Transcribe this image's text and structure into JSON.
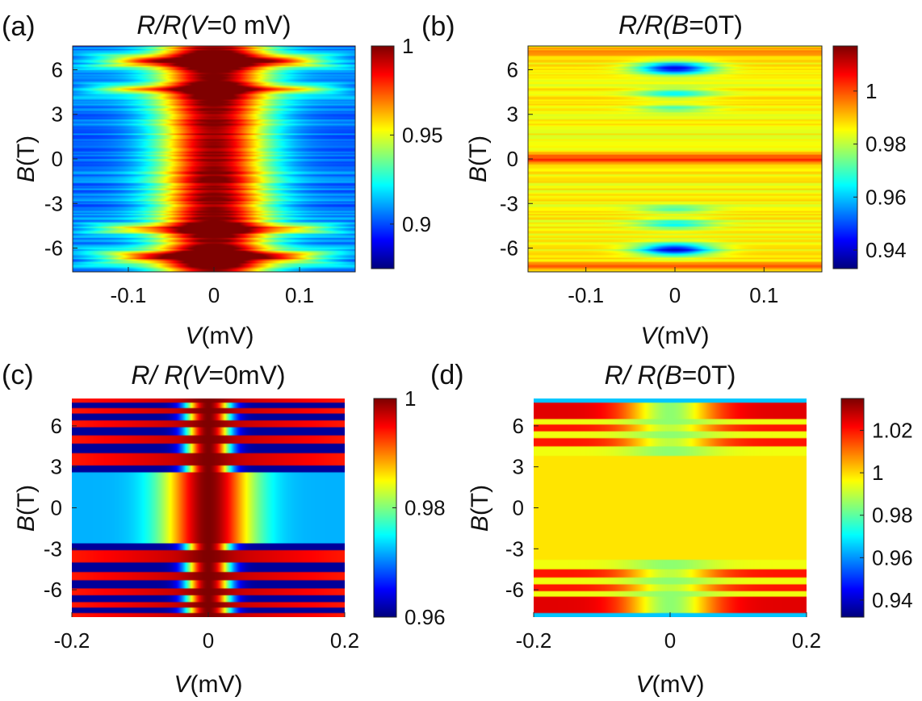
{
  "figure": {
    "panels": [
      {
        "label": "(a)",
        "title": {
          "a": "R/R(",
          "b": "V",
          "c": "=0 mV)"
        },
        "ylabel": {
          "b": "B",
          "r": "(T)"
        },
        "xlabel": {
          "b": "V",
          "r": "(mV)"
        }
      },
      {
        "label": "(b)",
        "title": {
          "a": "R/R(",
          "b": "B",
          "c": "=0T)"
        },
        "ylabel": {
          "b": "B",
          "r": "(T)"
        },
        "xlabel": {
          "b": "V",
          "r": "(mV)"
        }
      },
      {
        "label": "(c)",
        "title": {
          "a": "R/ R(",
          "b": "V",
          "c": "=0mV)"
        },
        "ylabel": {
          "b": "B",
          "r": "(T)"
        },
        "xlabel": {
          "b": "V",
          "r": "(mV)"
        }
      },
      {
        "label": "(d)",
        "title": {
          "a": "R/ R(",
          "b": "B",
          "c": "=0T)"
        },
        "ylabel": {
          "b": "B",
          "r": "(T)"
        },
        "xlabel": {
          "b": "V",
          "r": "(mV)"
        }
      }
    ]
  },
  "chart_data": [
    {
      "type": "heatmap",
      "id": "a",
      "panel_label": "(a)",
      "title": "R/R(V=0 mV)",
      "xlabel": "V(mV)",
      "ylabel": "B(T)",
      "xlim": [
        -0.165,
        0.165
      ],
      "ylim": [
        -7.6,
        7.6
      ],
      "xticks": [
        -0.1,
        0,
        0.1
      ],
      "xticklabels": [
        "-0.1",
        "0",
        "0.1"
      ],
      "yticks": [
        6,
        3,
        0,
        -3,
        -6
      ],
      "yticklabels": [
        "6",
        "3",
        "0",
        "-3",
        "-6"
      ],
      "colorbar": {
        "range": [
          0.875,
          1.0
        ],
        "ticks": [
          1,
          0.95,
          0.9
        ],
        "ticklabels": [
          "1",
          "0.95",
          "0.9"
        ]
      },
      "colormap": "jet",
      "description_of_data": "Zero-bias peak (~1) along V=0, decreasing to ~0.9 at larger |V|; high-field horizontal bands near B=±4.8, ±6.5 T."
    },
    {
      "type": "heatmap",
      "id": "b",
      "panel_label": "(b)",
      "title": "R/R(B=0T)",
      "xlabel": "V(mV)",
      "ylabel": "B(T)",
      "xlim": [
        -0.165,
        0.165
      ],
      "ylim": [
        -7.6,
        7.6
      ],
      "xticks": [
        -0.1,
        0,
        0.1
      ],
      "xticklabels": [
        "-0.1",
        "0",
        "0.1"
      ],
      "yticks": [
        6,
        3,
        0,
        -3,
        -6
      ],
      "yticklabels": [
        "6",
        "3",
        "0",
        "-3",
        "-6"
      ],
      "colorbar": {
        "range": [
          0.933,
          1.017
        ],
        "ticks": [
          1,
          0.98,
          0.96,
          0.94
        ],
        "ticklabels": [
          "1",
          "0.98",
          "0.96",
          "0.94"
        ]
      },
      "colormap": "jet",
      "description_of_data": "Mostly ~0.985; red line (~1) at B=0; blue minima (~0.94) centered at V=0 near B=±6 T with weaker dips near ±4.5, ±3.5 T."
    },
    {
      "type": "heatmap",
      "id": "c",
      "panel_label": "(c)",
      "title": "R/ R(V=0mV)",
      "xlabel": "V(mV)",
      "ylabel": "B(T)",
      "xlim": [
        -0.2,
        0.2
      ],
      "ylim": [
        -8,
        8
      ],
      "xticks": [
        -0.2,
        0,
        0.2
      ],
      "xticklabels": [
        "-0.2",
        "0",
        "0.2"
      ],
      "yticks": [
        6,
        3,
        0,
        -3,
        -6
      ],
      "yticklabels": [
        "6",
        "3",
        "0",
        "-3",
        "-6"
      ],
      "colorbar": {
        "range": [
          0.96,
          1.0
        ],
        "ticks": [
          1,
          0.98,
          0.96
        ],
        "ticklabels": [
          "1",
          "0.98",
          "0.96"
        ]
      },
      "colormap": "jet",
      "description_of_data": "Calculated map: peak 1 at V=0 falling to ~0.97 at |V|=0.2; alternating red/blue horizontal stripes for |B|>2.5 T."
    },
    {
      "type": "heatmap",
      "id": "d",
      "panel_label": "(d)",
      "title": "R/ R(B=0T)",
      "xlabel": "V(mV)",
      "ylabel": "B(T)",
      "xlim": [
        -0.2,
        0.2
      ],
      "ylim": [
        -8,
        8
      ],
      "xticks": [
        -0.2,
        0,
        0.2
      ],
      "xticklabels": [
        "-0.2",
        "0",
        "0.2"
      ],
      "yticks": [
        6,
        3,
        0,
        -3,
        -6
      ],
      "yticklabels": [
        "6",
        "3",
        "0",
        "-3",
        "-6"
      ],
      "colorbar": {
        "range": [
          0.932,
          1.035
        ],
        "ticks": [
          1.02,
          1,
          0.98,
          0.96,
          0.94
        ],
        "ticklabels": [
          "1.02",
          "1",
          "0.98",
          "0.96",
          "0.94"
        ]
      },
      "colormap": "jet",
      "description_of_data": "Calculated map: ~1.0 background; for |B|>4 T red (~1.03) bands at larger |V| and green/yellow spots (~0.98) near V=0."
    }
  ]
}
